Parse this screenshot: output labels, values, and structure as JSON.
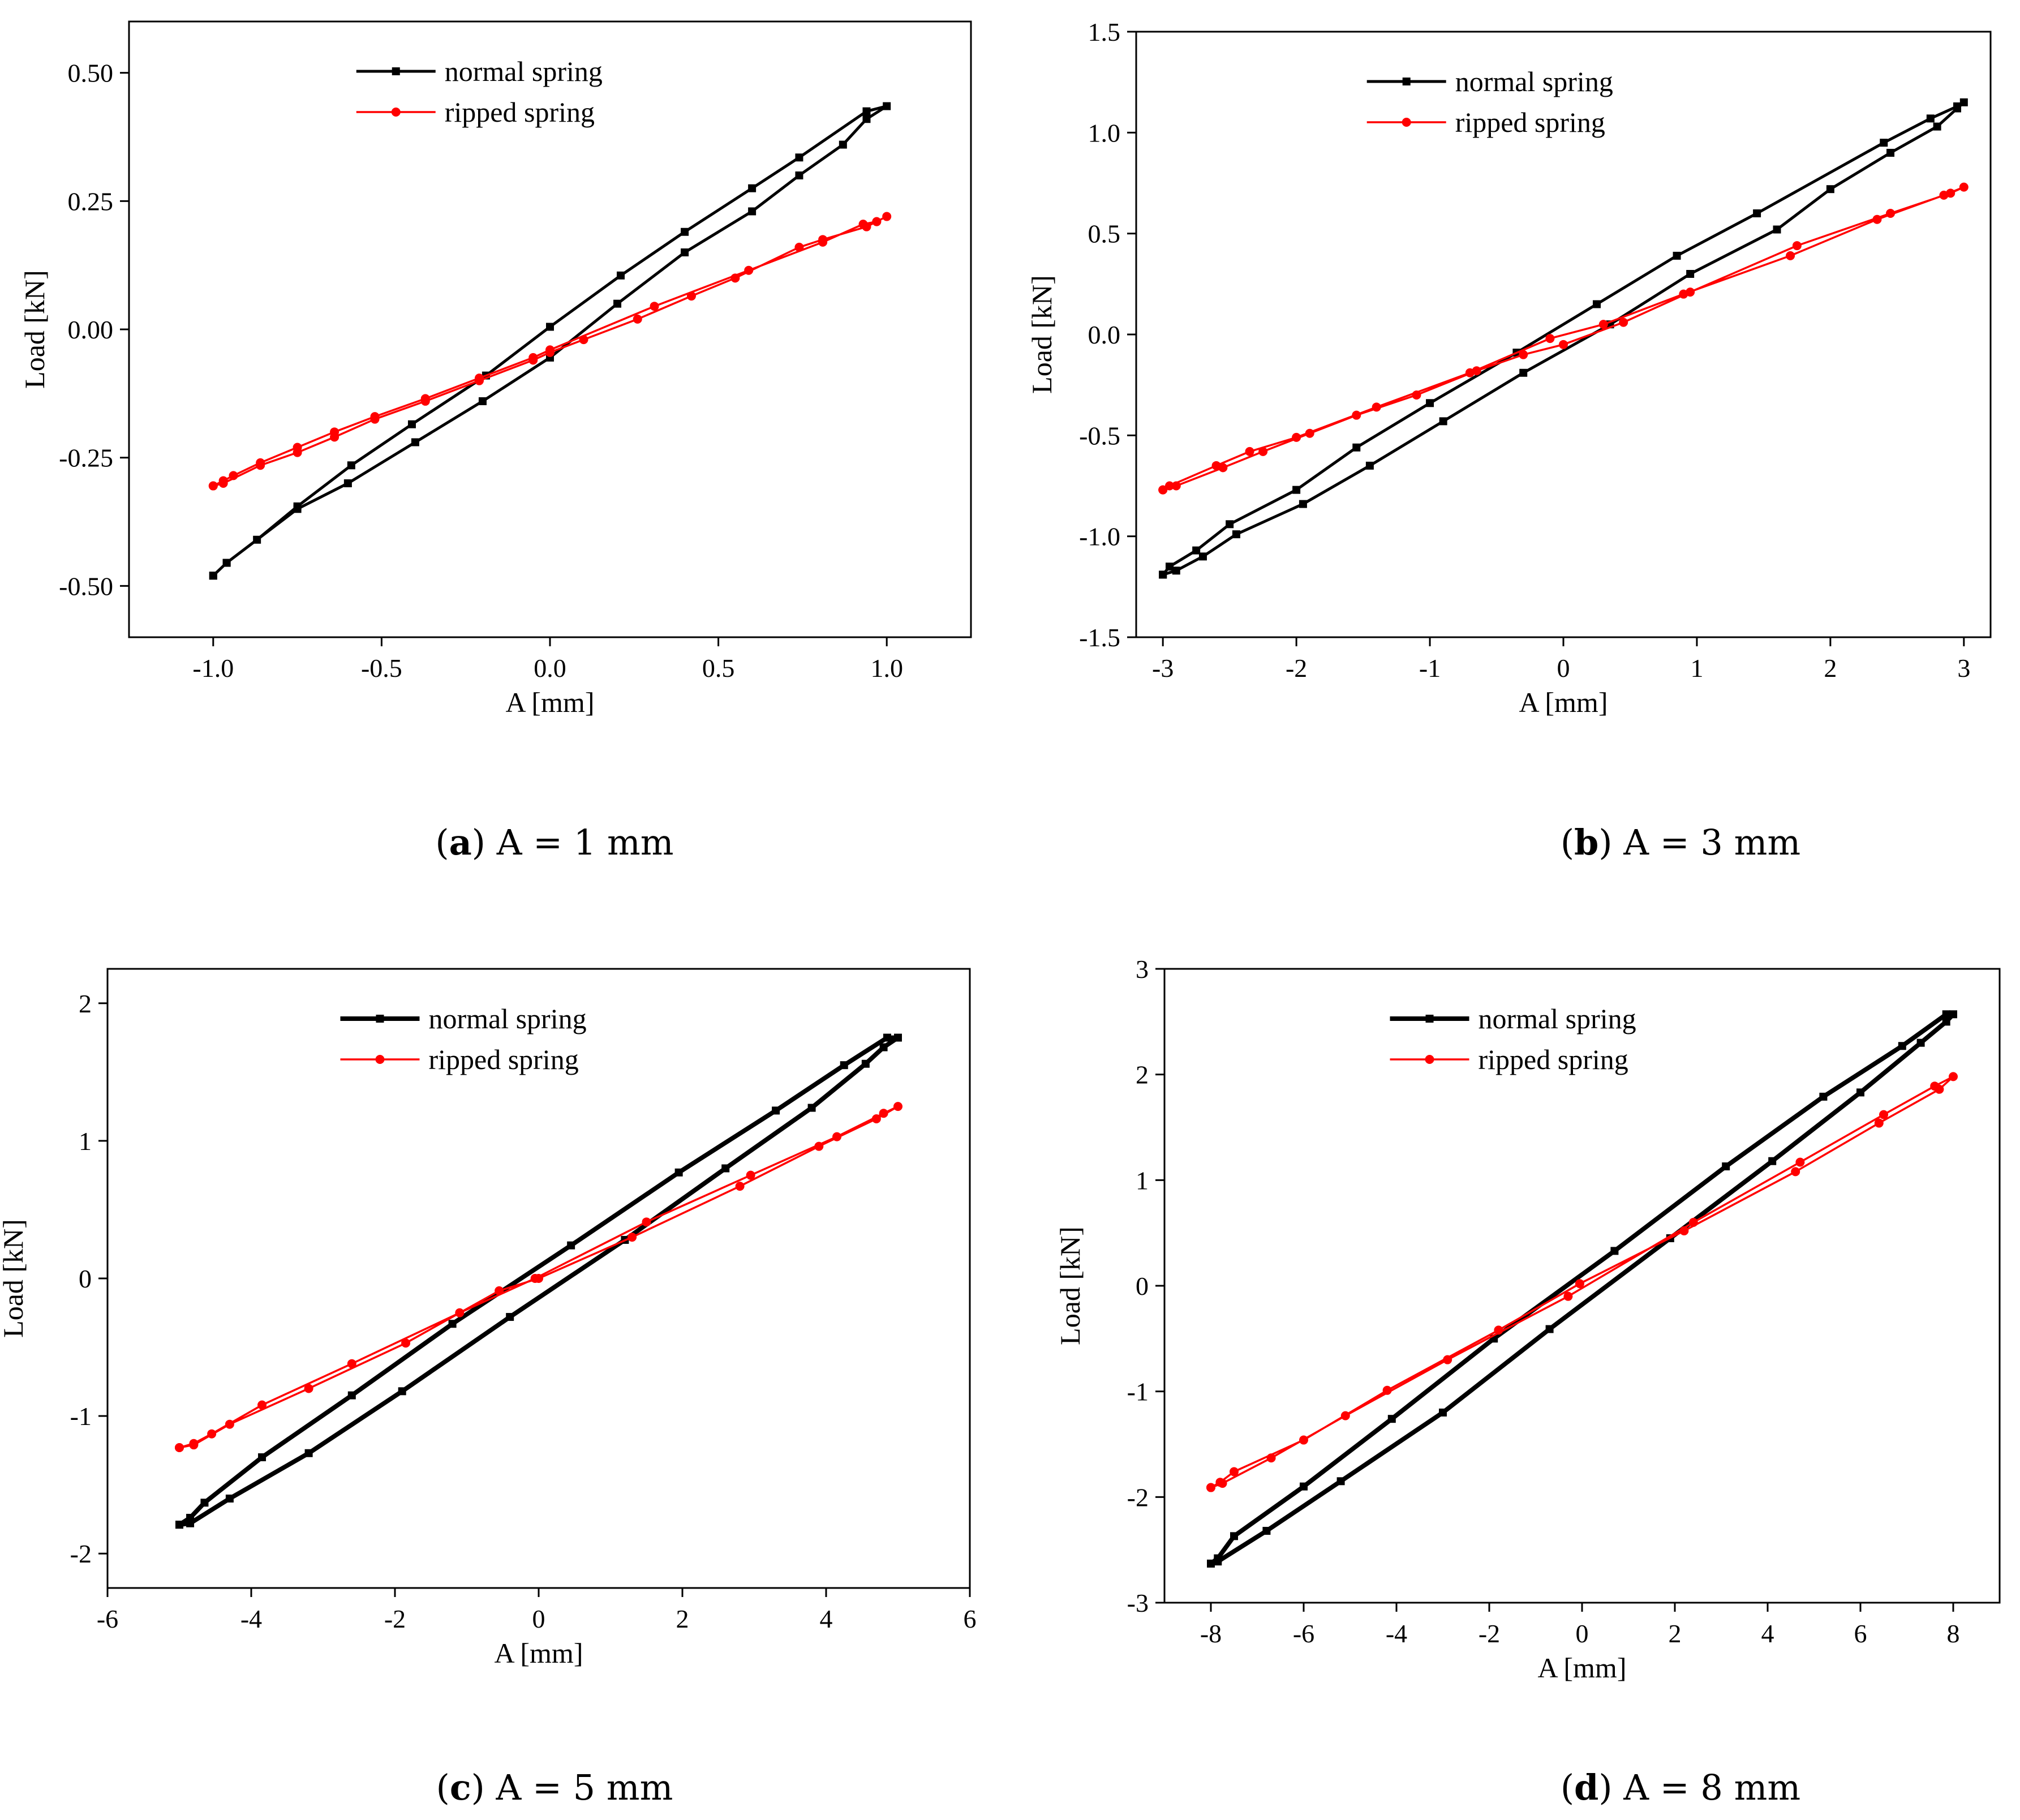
{
  "colors": {
    "normal": "#000000",
    "ripped": "#ff0000"
  },
  "chart_data": [
    {
      "type": "line",
      "caption_letter": "a",
      "caption_text": "A = 1 mm",
      "xlabel": "A [mm]",
      "ylabel": "Load [kN]",
      "xlim": [
        -1.25,
        1.25
      ],
      "ylim": [
        -0.6,
        0.6
      ],
      "xticks": [
        -1.0,
        -0.5,
        0.0,
        0.5,
        1.0
      ],
      "xtick_labels": [
        "-1.0",
        "-0.5",
        "0.0",
        "0.5",
        "1.0"
      ],
      "yticks": [
        -0.5,
        -0.25,
        0.0,
        0.25,
        0.5
      ],
      "ytick_labels": [
        "-0.50",
        "-0.25",
        "0.00",
        "0.25",
        "0.50"
      ],
      "legend_position": "top-center",
      "series": [
        {
          "name": "normal spring",
          "color": "#000000",
          "marker": "square",
          "x": [
            -1.0,
            -0.96,
            -0.75,
            -0.6,
            -0.4,
            -0.2,
            0.0,
            0.2,
            0.4,
            0.6,
            0.74,
            0.87,
            0.94,
            1.0,
            0.94,
            0.74,
            0.6,
            0.4,
            0.21,
            0.0,
            -0.19,
            -0.41,
            -0.59,
            -0.75,
            -0.87,
            -0.96,
            -1.0
          ],
          "y": [
            -0.48,
            -0.455,
            -0.35,
            -0.3,
            -0.22,
            -0.14,
            -0.055,
            0.05,
            0.15,
            0.23,
            0.3,
            0.36,
            0.41,
            0.435,
            0.425,
            0.335,
            0.275,
            0.19,
            0.105,
            0.005,
            -0.09,
            -0.185,
            -0.265,
            -0.345,
            -0.41,
            -0.455,
            -0.48
          ]
        },
        {
          "name": "ripped spring",
          "color": "#ff0000",
          "marker": "circle",
          "x": [
            -1.0,
            -0.97,
            -0.86,
            -0.75,
            -0.64,
            -0.52,
            -0.37,
            -0.21,
            -0.05,
            0.0,
            0.1,
            0.26,
            0.42,
            0.55,
            0.74,
            0.81,
            0.94,
            0.97,
            1.0,
            0.97,
            0.93,
            0.81,
            0.59,
            0.31,
            0.0,
            -0.05,
            -0.21,
            -0.37,
            -0.52,
            -0.64,
            -0.75,
            -0.86,
            -0.94,
            -0.97,
            -1.0
          ],
          "y": [
            -0.305,
            -0.3,
            -0.265,
            -0.24,
            -0.21,
            -0.175,
            -0.14,
            -0.1,
            -0.06,
            -0.045,
            -0.02,
            0.02,
            0.065,
            0.1,
            0.16,
            0.175,
            0.2,
            0.21,
            0.22,
            0.21,
            0.205,
            0.17,
            0.115,
            0.045,
            -0.04,
            -0.055,
            -0.095,
            -0.135,
            -0.17,
            -0.2,
            -0.23,
            -0.26,
            -0.285,
            -0.295,
            -0.305
          ]
        }
      ]
    },
    {
      "type": "line",
      "caption_letter": "b",
      "caption_text": "A = 3 mm",
      "xlabel": "A [mm]",
      "ylabel": "Load [kN]",
      "xlim": [
        -3.2,
        3.2
      ],
      "ylim": [
        -1.5,
        1.5
      ],
      "xticks": [
        -3,
        -2,
        -1,
        0,
        1,
        2,
        3
      ],
      "xtick_labels": [
        "-3",
        "-2",
        "-1",
        "0",
        "1",
        "2",
        "3"
      ],
      "yticks": [
        -1.5,
        -1.0,
        -0.5,
        0.0,
        0.5,
        1.0,
        1.5
      ],
      "ytick_labels": [
        "-1.5",
        "-1.0",
        "-0.5",
        "0.0",
        "0.5",
        "1.0",
        "1.5"
      ],
      "legend_position": "top-center",
      "series": [
        {
          "name": "normal spring",
          "color": "#000000",
          "marker": "square",
          "x": [
            -3.0,
            -2.9,
            -2.7,
            -2.45,
            -1.95,
            -1.45,
            -0.9,
            -0.3,
            0.35,
            0.95,
            1.6,
            2.0,
            2.45,
            2.8,
            2.95,
            3.0,
            2.95,
            2.75,
            2.4,
            1.45,
            0.85,
            0.25,
            -0.35,
            -1.0,
            -1.55,
            -2.0,
            -2.5,
            -2.75,
            -2.95,
            -3.0
          ],
          "y": [
            -1.19,
            -1.17,
            -1.1,
            -0.99,
            -0.84,
            -0.65,
            -0.43,
            -0.19,
            0.05,
            0.3,
            0.52,
            0.72,
            0.9,
            1.03,
            1.12,
            1.15,
            1.13,
            1.07,
            0.95,
            0.6,
            0.39,
            0.15,
            -0.09,
            -0.34,
            -0.56,
            -0.77,
            -0.94,
            -1.07,
            -1.15,
            -1.19
          ]
        },
        {
          "name": "ripped spring",
          "color": "#ff0000",
          "marker": "circle",
          "x": [
            -3.0,
            -2.9,
            -2.55,
            -2.25,
            -1.9,
            -1.55,
            -1.1,
            -0.65,
            -0.3,
            0.0,
            0.45,
            0.95,
            1.75,
            2.45,
            2.9,
            3.0,
            2.85,
            2.35,
            1.7,
            0.9,
            0.3,
            -0.1,
            -0.7,
            -1.4,
            -2.0,
            -2.35,
            -2.6,
            -2.95,
            -3.0
          ],
          "y": [
            -0.77,
            -0.75,
            -0.66,
            -0.58,
            -0.49,
            -0.4,
            -0.3,
            -0.18,
            -0.1,
            -0.05,
            0.06,
            0.21,
            0.44,
            0.6,
            0.7,
            0.73,
            0.69,
            0.57,
            0.39,
            0.2,
            0.05,
            -0.02,
            -0.19,
            -0.36,
            -0.51,
            -0.58,
            -0.65,
            -0.75,
            -0.77
          ]
        }
      ]
    },
    {
      "type": "line",
      "caption_letter": "c",
      "caption_text": "A = 5 mm",
      "xlabel": "A [mm]",
      "ylabel": "Load [kN]",
      "xlim": [
        -6,
        6
      ],
      "ylim": [
        -2.25,
        2.25
      ],
      "xticks": [
        -6,
        -4,
        -2,
        0,
        2,
        4,
        6
      ],
      "xtick_labels": [
        "-6",
        "-4",
        "-2",
        "0",
        "2",
        "4",
        "6"
      ],
      "yticks": [
        -2,
        -1,
        0,
        1,
        2
      ],
      "ytick_labels": [
        "-2",
        "-1",
        "0",
        "1",
        "2"
      ],
      "legend_position": "top-center",
      "series": [
        {
          "name": "normal spring",
          "color": "#000000",
          "marker": "square",
          "x": [
            -5.0,
            -4.85,
            -4.3,
            -3.2,
            -1.9,
            -0.4,
            1.2,
            2.6,
            3.8,
            4.55,
            4.8,
            5.0,
            4.85,
            4.25,
            3.3,
            1.95,
            0.45,
            -1.2,
            -2.6,
            -3.85,
            -4.65,
            -4.85,
            -5.0
          ],
          "y": [
            -1.79,
            -1.78,
            -1.6,
            -1.27,
            -0.82,
            -0.28,
            0.28,
            0.8,
            1.24,
            1.56,
            1.68,
            1.75,
            1.75,
            1.55,
            1.22,
            0.77,
            0.24,
            -0.33,
            -0.85,
            -1.3,
            -1.63,
            -1.74,
            -1.79
          ]
        },
        {
          "name": "ripped spring",
          "color": "#ff0000",
          "marker": "circle",
          "x": [
            -5.0,
            -4.8,
            -4.3,
            -3.2,
            -1.85,
            -0.55,
            0.0,
            1.3,
            2.8,
            3.9,
            4.7,
            5.0,
            4.8,
            4.15,
            2.95,
            1.5,
            -0.05,
            -1.1,
            -2.6,
            -3.85,
            -4.55,
            -4.8,
            -5.0
          ],
          "y": [
            -1.23,
            -1.21,
            -1.06,
            -0.8,
            -0.47,
            -0.09,
            0.0,
            0.3,
            0.67,
            0.96,
            1.16,
            1.25,
            1.2,
            1.03,
            0.75,
            0.41,
            0.0,
            -0.25,
            -0.62,
            -0.92,
            -1.13,
            -1.2,
            -1.23
          ]
        }
      ]
    },
    {
      "type": "line",
      "caption_letter": "d",
      "caption_text": "A = 8 mm",
      "xlabel": "A [mm]",
      "ylabel": "Load [kN]",
      "xlim": [
        -9,
        9
      ],
      "ylim": [
        -3,
        3
      ],
      "xticks": [
        -8,
        -6,
        -4,
        -2,
        0,
        2,
        4,
        6,
        8
      ],
      "xtick_labels": [
        "-8",
        "-6",
        "-4",
        "-2",
        "0",
        "2",
        "4",
        "6",
        "8"
      ],
      "yticks": [
        -3,
        -2,
        -1,
        0,
        1,
        2,
        3
      ],
      "ytick_labels": [
        "-3",
        "-2",
        "-1",
        "0",
        "1",
        "2",
        "3"
      ],
      "legend_position": "top-center",
      "series": [
        {
          "name": "normal spring",
          "color": "#000000",
          "marker": "square",
          "x": [
            -8.0,
            -7.85,
            -6.8,
            -5.2,
            -3.0,
            -0.7,
            1.9,
            4.1,
            6.0,
            7.3,
            7.85,
            8.0,
            7.85,
            6.9,
            5.2,
            3.1,
            0.7,
            -1.9,
            -4.1,
            -6.0,
            -7.5,
            -7.85,
            -8.0
          ],
          "y": [
            -2.63,
            -2.61,
            -2.32,
            -1.85,
            -1.2,
            -0.41,
            0.45,
            1.18,
            1.83,
            2.3,
            2.5,
            2.57,
            2.57,
            2.27,
            1.79,
            1.13,
            0.33,
            -0.5,
            -1.26,
            -1.9,
            -2.37,
            -2.58,
            -2.63
          ]
        },
        {
          "name": "ripped spring",
          "color": "#ff0000",
          "marker": "circle",
          "x": [
            -8.0,
            -7.75,
            -6.7,
            -5.1,
            -2.9,
            -0.3,
            2.4,
            4.7,
            6.5,
            7.6,
            8.0,
            7.7,
            6.4,
            4.6,
            2.2,
            -0.05,
            -1.8,
            -4.2,
            -6.0,
            -7.5,
            -7.8,
            -8.0
          ],
          "y": [
            -1.91,
            -1.87,
            -1.63,
            -1.23,
            -0.7,
            -0.1,
            0.6,
            1.17,
            1.62,
            1.89,
            1.98,
            1.86,
            1.54,
            1.08,
            0.52,
            0.02,
            -0.42,
            -0.99,
            -1.46,
            -1.76,
            -1.86,
            -1.91
          ]
        }
      ]
    }
  ]
}
